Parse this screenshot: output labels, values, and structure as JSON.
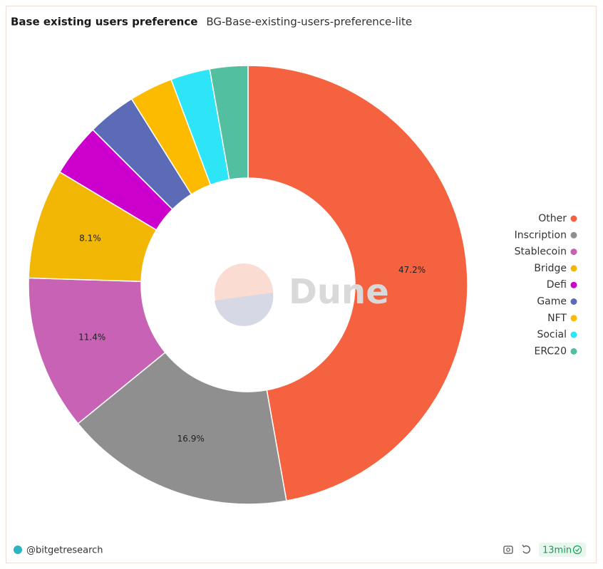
{
  "chart_data": {
    "type": "donut",
    "title": "Base existing users preference",
    "subtitle": "BG-Base-existing-users-preference-lite",
    "watermark": "Dune",
    "categories": [
      "Other",
      "Inscription",
      "Stablecoin",
      "Bridge",
      "Defi",
      "Game",
      "NFT",
      "Social",
      "ERC20"
    ],
    "values": [
      47.2,
      16.9,
      11.4,
      8.1,
      3.9,
      3.6,
      3.2,
      2.9,
      2.8
    ],
    "value_labels": [
      "47.2%",
      "16.9%",
      "11.4%",
      "8.1%",
      null,
      null,
      null,
      null,
      null
    ],
    "colors": [
      "#f4623f",
      "#8f8f8f",
      "#c862b4",
      "#f2b705",
      "#cc00cc",
      "#5c6bb5",
      "#fdbb00",
      "#2ee5f8",
      "#52bfa0"
    ],
    "legend": "right"
  },
  "footer": {
    "author": "@bitgetresearch",
    "refresh": "13min"
  }
}
